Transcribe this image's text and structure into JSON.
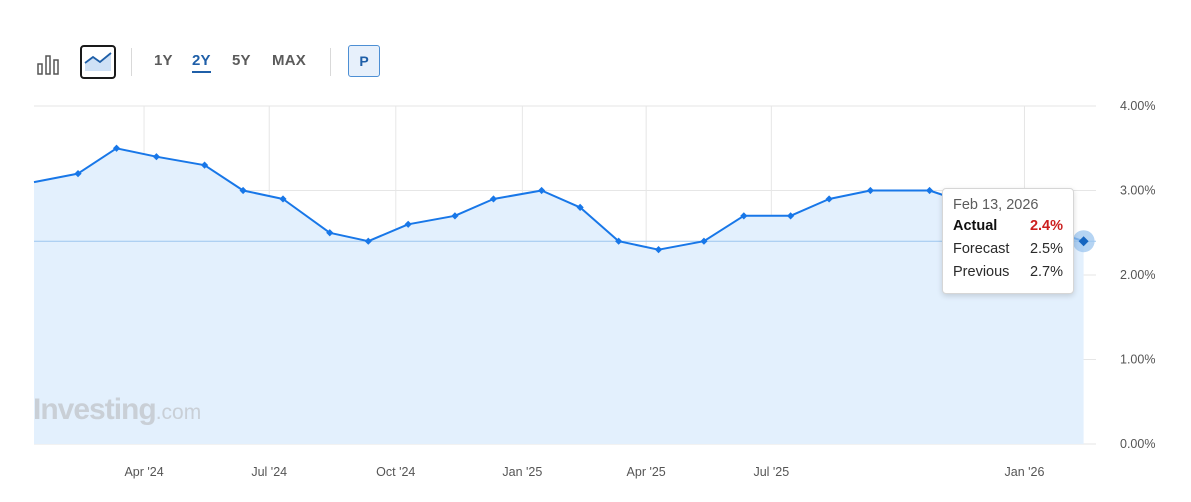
{
  "toolbar": {
    "ranges": [
      "1Y",
      "2Y",
      "5Y",
      "MAX"
    ],
    "active_range": "2Y",
    "p_label": "P"
  },
  "watermark": {
    "brand": "Investing",
    "suffix": ".com"
  },
  "tooltip": {
    "date": "Feb 13, 2026",
    "actual_label": "Actual",
    "actual_value": "2.4%",
    "forecast_label": "Forecast",
    "forecast_value": "2.5%",
    "previous_label": "Previous",
    "previous_value": "2.7%"
  },
  "colors": {
    "line": "#1877e8",
    "fill": "#e3f0fd",
    "grid": "#e6e6e6",
    "actual_value": "#cc1f1f",
    "active_range": "#1f5fa8"
  },
  "chart_data": {
    "type": "area",
    "title": "",
    "xlabel": "",
    "ylabel": "",
    "y_ticks": [
      "0.00%",
      "1.00%",
      "2.00%",
      "3.00%",
      "4.00%"
    ],
    "ylim": [
      0,
      4
    ],
    "x_ticks": [
      "Apr '24",
      "Jul '24",
      "Oct '24",
      "Jan '25",
      "Apr '25",
      "Jul '25",
      "Jan '26"
    ],
    "x_tick_dates": [
      "2024-04-01",
      "2024-07-01",
      "2024-10-01",
      "2025-01-01",
      "2025-04-01",
      "2025-07-01",
      "2026-01-01"
    ],
    "xlim": [
      "2024-01-12",
      "2026-02-22"
    ],
    "grid": true,
    "reference_line": 2.4,
    "series": [
      {
        "x": [
          "2024-01-12",
          "2024-02-13",
          "2024-03-12",
          "2024-04-10",
          "2024-05-15",
          "2024-06-12",
          "2024-07-11",
          "2024-08-14",
          "2024-09-11",
          "2024-10-10",
          "2024-11-13",
          "2024-12-11",
          "2025-01-15",
          "2025-02-12",
          "2025-03-12",
          "2025-04-10",
          "2025-05-13",
          "2025-06-11",
          "2025-07-15",
          "2025-08-12",
          "2025-09-11",
          "2025-10-24",
          "2025-12-18",
          "2026-02-13"
        ],
        "values": [
          3.1,
          3.2,
          3.5,
          3.4,
          3.3,
          3.0,
          2.9,
          2.5,
          2.4,
          2.6,
          2.7,
          2.9,
          3.0,
          2.8,
          2.4,
          2.3,
          2.4,
          2.7,
          2.7,
          2.9,
          3.0,
          3.0,
          2.7,
          2.4
        ]
      }
    ],
    "highlighted_point": {
      "x": "2026-02-13",
      "value": 2.4
    }
  }
}
